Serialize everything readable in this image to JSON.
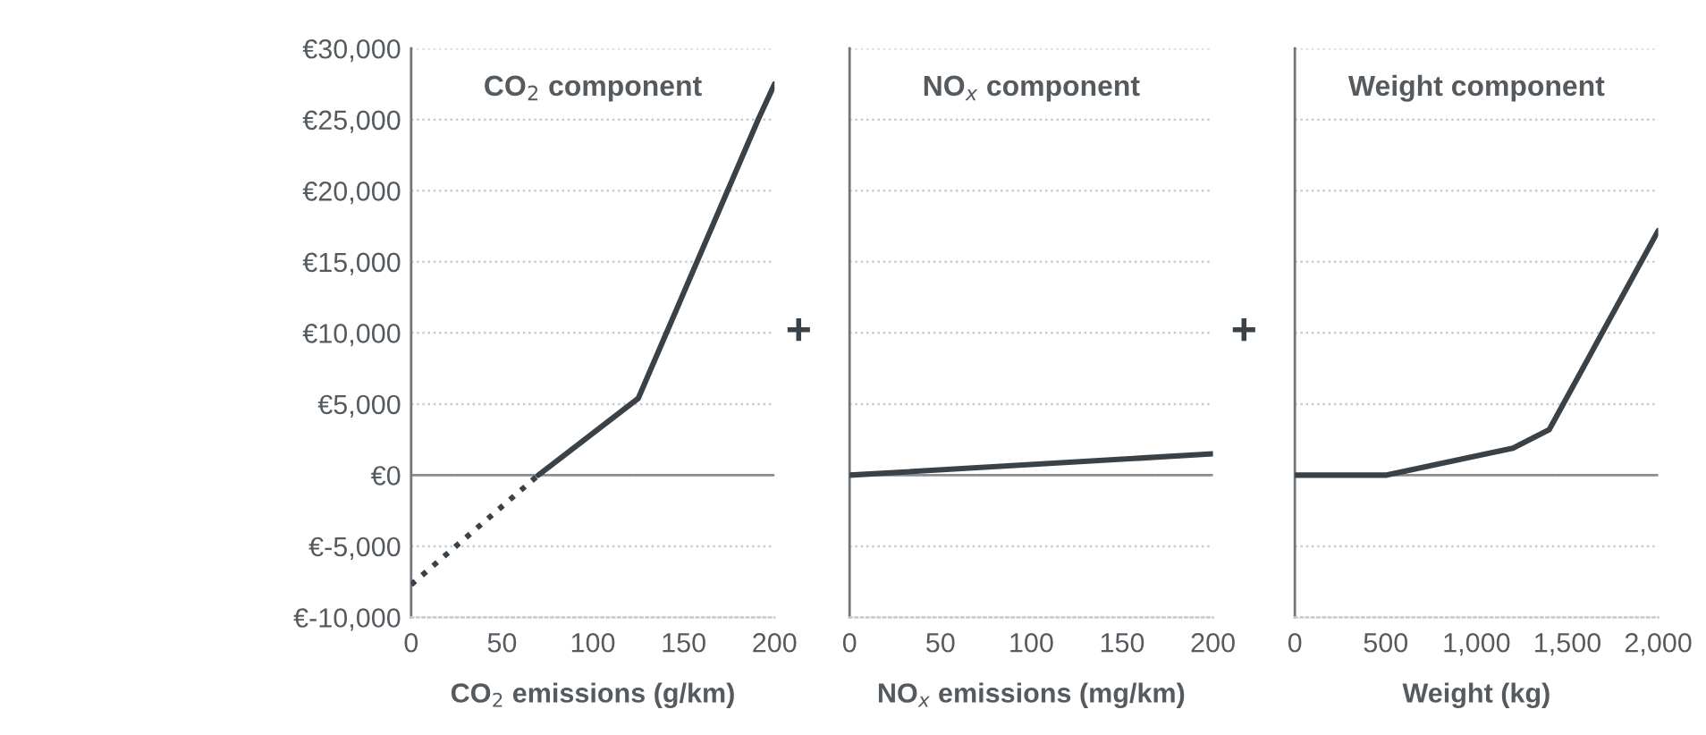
{
  "chart_data": [
    {
      "type": "line",
      "title": "CO$_{2}$ component",
      "xlabel": "CO$_{2}$ emissions (g/km)",
      "series": [
        {
          "x": [
            0,
            70
          ],
          "values": [
            -7700,
            0
          ],
          "color": "#3a4248",
          "line_style": "dotted"
        },
        {
          "x": [
            70,
            125,
            191,
            200
          ],
          "values": [
            0,
            5400,
            25000,
            27500
          ],
          "color": "#3a4248",
          "line_style": "solid"
        }
      ],
      "xlim": [
        0,
        200
      ],
      "xticks": [
        0,
        50,
        100,
        150,
        200
      ],
      "ylim": [
        -10000,
        30000
      ],
      "yticks": [
        {
          "value": -10000,
          "label": "€-10,000"
        },
        {
          "value": -5000,
          "label": "€-5,000"
        },
        {
          "value": 0,
          "label": "€0"
        },
        {
          "value": 5000,
          "label": "€5,000"
        },
        {
          "value": 10000,
          "label": "€10,000"
        },
        {
          "value": 15000,
          "label": "€15,000"
        },
        {
          "value": 20000,
          "label": "€20,000"
        },
        {
          "value": 25000,
          "label": "€25,000"
        },
        {
          "value": 30000,
          "label": "€30,000"
        }
      ],
      "grid": "y",
      "ref_lines": [
        {
          "axis": "y",
          "value": 0,
          "color": "#8a8f94",
          "line_style": "solid"
        }
      ]
    },
    {
      "type": "line",
      "title": "NO$_{x}$ component",
      "xlabel": "NO$_{x}$ emissions (mg/km)",
      "series": [
        {
          "x": [
            0,
            200
          ],
          "values": [
            0,
            1500
          ],
          "color": "#3a4248",
          "line_style": "solid"
        }
      ],
      "xlim": [
        0,
        200
      ],
      "xticks": [
        0,
        50,
        100,
        150,
        200
      ],
      "ylim": [
        -10000,
        30000
      ],
      "yticks": [
        -10000,
        -5000,
        0,
        5000,
        10000,
        15000,
        20000,
        25000,
        30000
      ],
      "tick_labels": "x",
      "grid": "y",
      "ref_lines": [
        {
          "axis": "y",
          "value": 0,
          "color": "#8a8f94",
          "line_style": "solid"
        }
      ],
      "annotations": [
        "+"
      ]
    },
    {
      "type": "line",
      "title": "Weight component",
      "xlabel": "Weight (kg)",
      "series": [
        {
          "x": [
            0,
            500,
            1200,
            1400,
            2000
          ],
          "values": [
            0,
            0,
            1900,
            3200,
            17200
          ],
          "color": "#3a4248",
          "line_style": "solid"
        }
      ],
      "xlim": [
        0,
        2000
      ],
      "xticks": [
        0,
        500,
        {
          "value": 1000,
          "label": "1,000"
        },
        {
          "value": 1500,
          "label": "1,500"
        },
        {
          "value": 2000,
          "label": "2,000"
        }
      ],
      "ylim": [
        -10000,
        30000
      ],
      "yticks": [
        -10000,
        -5000,
        0,
        5000,
        10000,
        15000,
        20000,
        25000,
        30000
      ],
      "tick_labels": "x",
      "grid": "y",
      "ref_lines": [
        {
          "axis": "y",
          "value": 0,
          "color": "#8a8f94",
          "line_style": "solid"
        }
      ],
      "annotations": [
        "+"
      ]
    }
  ]
}
